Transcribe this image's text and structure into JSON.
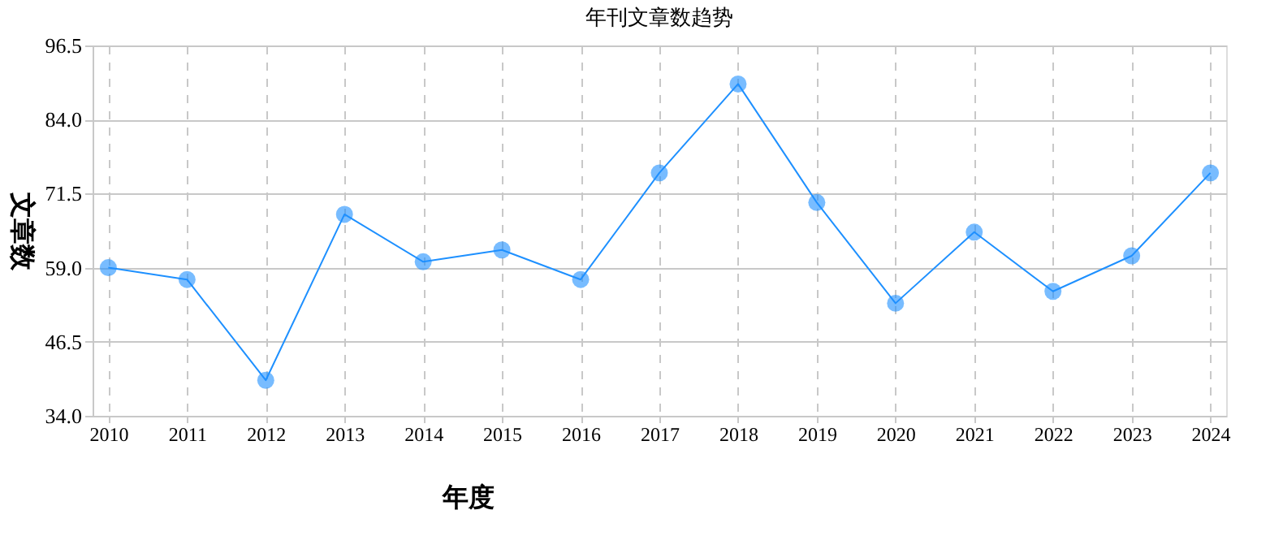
{
  "chart_data": {
    "type": "line",
    "title": "年刊文章数趋势",
    "xlabel": "年度",
    "ylabel": "文章数",
    "categories": [
      "2010",
      "2011",
      "2012",
      "2013",
      "2014",
      "2015",
      "2016",
      "2017",
      "2018",
      "2019",
      "2020",
      "2021",
      "2022",
      "2023",
      "2024"
    ],
    "series": [
      {
        "color": "#1e90ff",
        "values": [
          59,
          57,
          40,
          68,
          60,
          62,
          57,
          75,
          90,
          70,
          53,
          65,
          55,
          61,
          75
        ]
      }
    ],
    "ylim": [
      34.0,
      96.5
    ],
    "yticks": [
      {
        "value": 34,
        "label": "34.0"
      },
      {
        "value": 46.5,
        "label": "46.5"
      },
      {
        "value": 59,
        "label": "59.0"
      },
      {
        "value": 71.5,
        "label": "71.5"
      },
      {
        "value": 84,
        "label": "84.0"
      },
      {
        "value": 96.5,
        "label": "96.5"
      }
    ],
    "grid": true,
    "marker": "circle",
    "line_style": "solid"
  }
}
